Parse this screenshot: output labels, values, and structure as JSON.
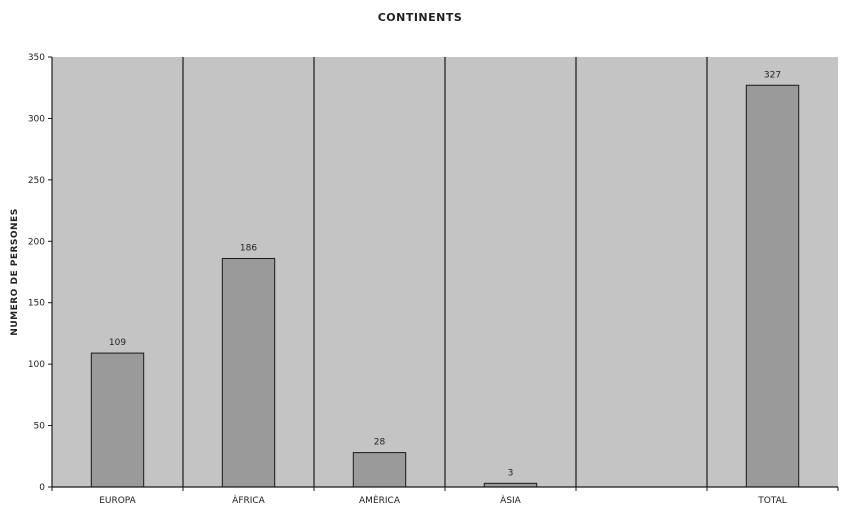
{
  "chart_data": {
    "type": "bar",
    "title": "CONTINENTS",
    "xlabel": "",
    "ylabel": "NUMERO DE PERSONES",
    "categories": [
      "EUROPA",
      "ÀFRICA",
      "AMÈRICA",
      "ÀSIA",
      "",
      "TOTAL"
    ],
    "values": [
      109,
      186,
      28,
      3,
      null,
      327
    ],
    "data_labels": [
      "109",
      "186",
      "28",
      "3",
      "",
      "327"
    ],
    "ylim": [
      0,
      350
    ],
    "yticks": [
      0,
      50,
      100,
      150,
      200,
      250,
      300,
      350
    ],
    "grid": "vertical category separators",
    "legend": "none",
    "colors": {
      "plot_background": "#c4c4c4",
      "bar_fill": "#9a9a9a",
      "bar_stroke": "#1a1a1a",
      "separator": "#1a1a1a"
    }
  }
}
